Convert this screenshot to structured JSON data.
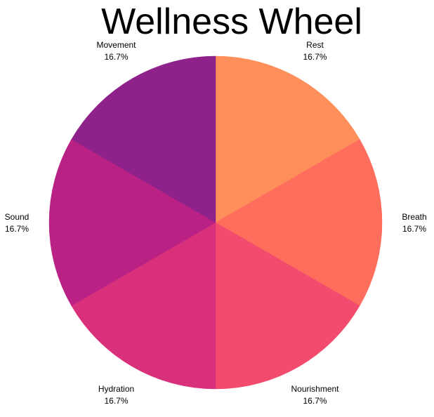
{
  "chart_data": {
    "type": "pie",
    "title": "Wellness Wheel",
    "slices": [
      {
        "label": "Rest",
        "value": 16.7,
        "percent_label": "16.7%",
        "color": "#ff8f5a"
      },
      {
        "label": "Breath",
        "value": 16.7,
        "percent_label": "16.7%",
        "color": "#ff6d5d"
      },
      {
        "label": "Nourishment",
        "value": 16.7,
        "percent_label": "16.7%",
        "color": "#f24b6d"
      },
      {
        "label": "Hydration",
        "value": 16.7,
        "percent_label": "16.7%",
        "color": "#d9307b"
      },
      {
        "label": "Sound",
        "value": 16.7,
        "percent_label": "16.7%",
        "color": "#ba2185"
      },
      {
        "label": "Movement",
        "value": 16.7,
        "percent_label": "16.7%",
        "color": "#8f228a"
      }
    ],
    "start_angle_deg": 0,
    "direction": "clockwise",
    "legend": "none"
  }
}
